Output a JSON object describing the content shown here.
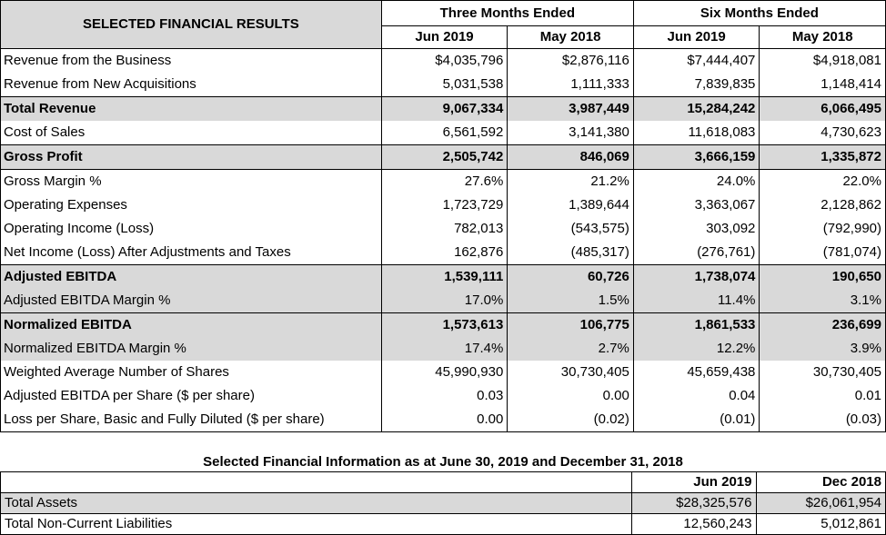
{
  "table": {
    "title": "SELECTED FINANCIAL RESULTS",
    "group1": "Three Months Ended",
    "group2": "Six Months Ended",
    "cols": [
      "Jun 2019",
      "May 2018",
      "Jun 2019",
      "May 2018"
    ],
    "rows": [
      {
        "label": "Revenue from the Business",
        "values": [
          "$4,035,796",
          "$2,876,116",
          "$7,444,407",
          "$4,918,081"
        ]
      },
      {
        "label": "Revenue from New Acquisitions",
        "values": [
          "5,031,538",
          "1,111,333",
          "7,839,835",
          "1,148,414"
        ]
      },
      {
        "label": "Total Revenue",
        "values": [
          "9,067,334",
          "3,987,449",
          "15,284,242",
          "6,066,495"
        ]
      },
      {
        "label": "Cost of Sales",
        "values": [
          "6,561,592",
          "3,141,380",
          "11,618,083",
          "4,730,623"
        ]
      },
      {
        "label": "Gross Profit",
        "values": [
          "2,505,742",
          "846,069",
          "3,666,159",
          "1,335,872"
        ]
      },
      {
        "label": "Gross Margin %",
        "values": [
          "27.6%",
          "21.2%",
          "24.0%",
          "22.0%"
        ]
      },
      {
        "label": "Operating Expenses",
        "values": [
          "1,723,729",
          "1,389,644",
          "3,363,067",
          "2,128,862"
        ]
      },
      {
        "label": "Operating Income (Loss)",
        "values": [
          "782,013",
          "(543,575)",
          "303,092",
          "(792,990)"
        ]
      },
      {
        "label": "Net Income (Loss) After Adjustments and Taxes",
        "values": [
          "162,876",
          "(485,317)",
          "(276,761)",
          "(781,074)"
        ]
      },
      {
        "label": "Adjusted EBITDA",
        "values": [
          "1,539,111",
          "60,726",
          "1,738,074",
          "190,650"
        ]
      },
      {
        "label": "Adjusted EBITDA Margin %",
        "values": [
          "17.0%",
          "1.5%",
          "11.4%",
          "3.1%"
        ]
      },
      {
        "label": "Normalized EBITDA",
        "values": [
          "1,573,613",
          "106,775",
          "1,861,533",
          "236,699"
        ]
      },
      {
        "label": "Normalized EBITDA Margin %",
        "values": [
          "17.4%",
          "2.7%",
          "12.2%",
          "3.9%"
        ]
      },
      {
        "label": "Weighted Average Number of Shares",
        "values": [
          "45,990,930",
          "30,730,405",
          "45,659,438",
          "30,730,405"
        ]
      },
      {
        "label": "Adjusted EBITDA per Share ($ per share)",
        "values": [
          "0.03",
          "0.00",
          "0.04",
          "0.01"
        ]
      },
      {
        "label": "Loss per Share, Basic and Fully Diluted ($ per share)",
        "values": [
          "0.00",
          "(0.02)",
          "(0.01)",
          "(0.03)"
        ]
      }
    ]
  },
  "balance": {
    "title": "Selected Financial Information as at June 30, 2019 and December 31, 2018",
    "cols": [
      "Jun 2019",
      "Dec 2018"
    ],
    "rows": [
      {
        "label": "Total Assets",
        "values": [
          "$28,325,576",
          "$26,061,954"
        ]
      },
      {
        "label": "Total Non-Current Liabilities",
        "values": [
          "12,560,243",
          "5,012,861"
        ]
      }
    ]
  },
  "colors": {
    "shade": "#d9d9d9",
    "border": "#000000"
  }
}
